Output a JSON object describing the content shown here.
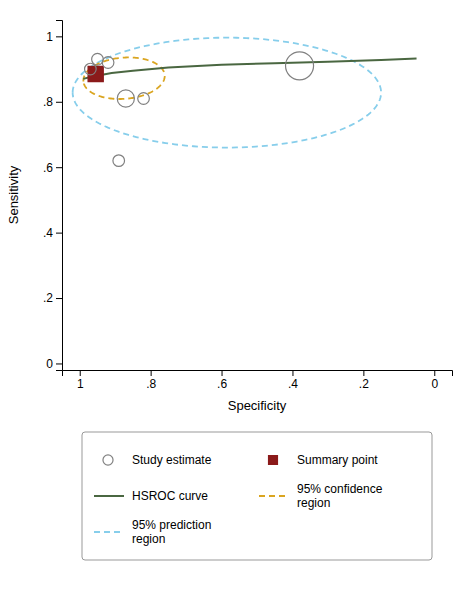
{
  "chart_data": {
    "type": "scatter",
    "xlabel": "Specificity",
    "ylabel": "Sensitivity",
    "xlim": [
      1.05,
      -0.05
    ],
    "ylim": [
      -0.02,
      1.05
    ],
    "xticks": [
      1.0,
      {
        "value": 0.8,
        "label": ".8"
      },
      {
        "value": 0.6,
        "label": ".6"
      },
      {
        "value": 0.4,
        "label": ".4"
      },
      {
        "value": 0.2,
        "label": ".2"
      },
      0.0
    ],
    "yticks": [
      0.0,
      {
        "value": 0.2,
        "label": ".2"
      },
      {
        "value": 0.4,
        "label": ".4"
      },
      {
        "value": 0.6,
        "label": ".6"
      },
      {
        "value": 0.8,
        "label": ".8"
      },
      1.0
    ],
    "legend": "bottom",
    "series": [
      {
        "name": "Study estimate",
        "type": "scatter",
        "marker": "circle",
        "color": "#808080",
        "x": [
          0.97,
          0.95,
          0.92,
          0.87,
          0.82,
          0.38,
          0.89
        ],
        "values": [
          0.9,
          0.93,
          0.92,
          0.81,
          0.81,
          0.91,
          0.62
        ],
        "sizes": [
          55,
          55,
          55,
          120,
          55,
          320,
          55
        ]
      },
      {
        "name": "Summary point",
        "type": "scatter",
        "marker": "square",
        "color": "#8B1A1A",
        "x": [
          0.955
        ],
        "values": [
          0.885
        ]
      },
      {
        "name": "HSROC curve",
        "type": "line",
        "color": "#4A6741",
        "x": [
          0.99,
          0.97,
          0.94,
          0.91,
          0.85,
          0.75,
          0.6,
          0.45,
          0.3,
          0.15,
          0.05
        ],
        "values": [
          0.87,
          0.876,
          0.882,
          0.888,
          0.895,
          0.905,
          0.913,
          0.918,
          0.922,
          0.928,
          0.932
        ]
      },
      {
        "name": "95% confidence\nregion",
        "type": "ellipse",
        "line_style": "dashed",
        "color": "#DAA520",
        "cx": 0.875,
        "cy": 0.872,
        "rx": 0.115,
        "ry": 0.063,
        "angle": -5
      },
      {
        "name": "95% prediction\nregion",
        "type": "ellipse",
        "line_style": "dashed",
        "color": "#87CEEB",
        "cx": 0.585,
        "cy": 0.828,
        "rx": 0.435,
        "ry": 0.168,
        "angle": 0
      }
    ]
  }
}
